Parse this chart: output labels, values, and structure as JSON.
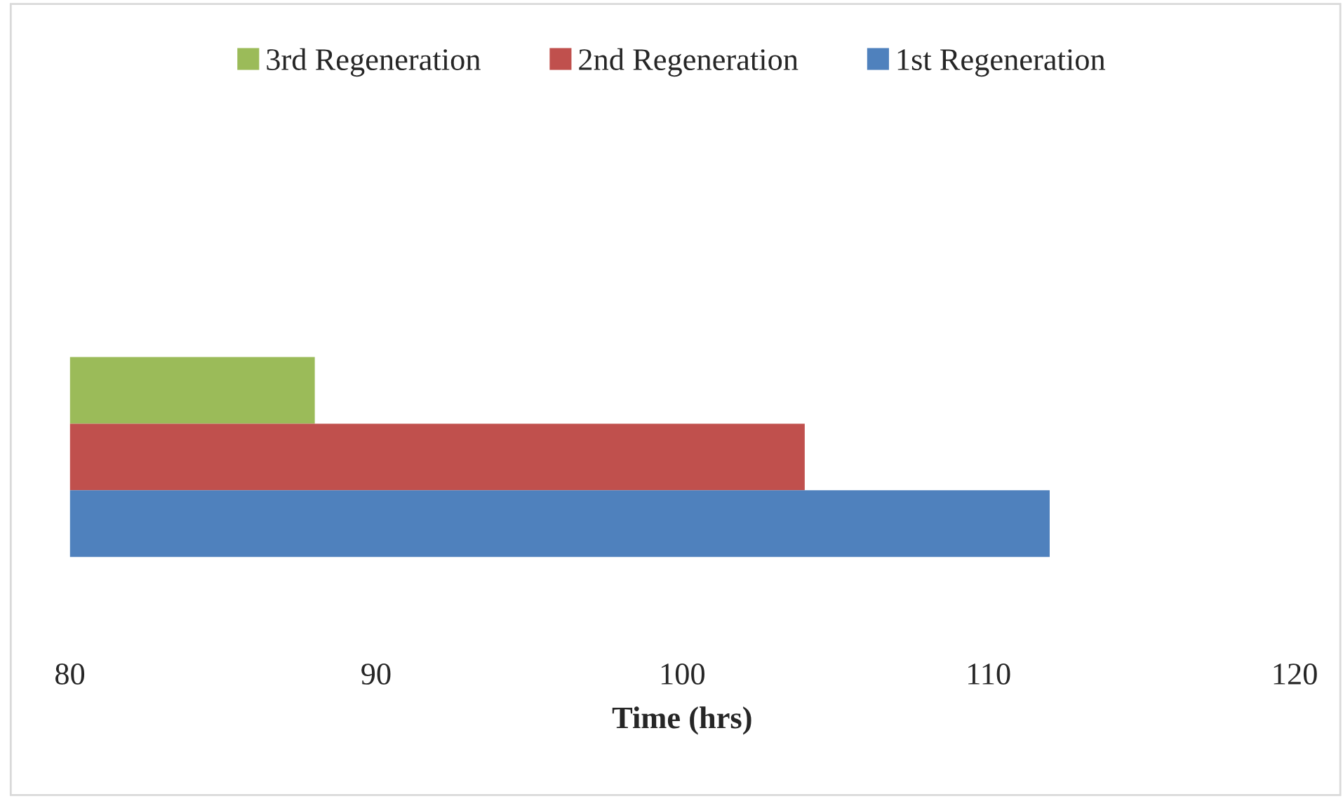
{
  "chart_data": {
    "type": "bar",
    "orientation": "horizontal",
    "xlabel": "Time (hrs)",
    "categories": [
      null
    ],
    "series": [
      {
        "name": "3rd Regeneration",
        "color": "#9bbb59",
        "values": [
          88
        ]
      },
      {
        "name": "2nd Regeneration",
        "color": "#c0504d",
        "values": [
          104
        ]
      },
      {
        "name": "1st Regeneration",
        "color": "#4f81bd",
        "values": [
          112
        ]
      }
    ],
    "xlim": [
      80,
      120
    ],
    "xticks": [
      80,
      90,
      100,
      110,
      120
    ],
    "grid": false,
    "legend": "top"
  }
}
